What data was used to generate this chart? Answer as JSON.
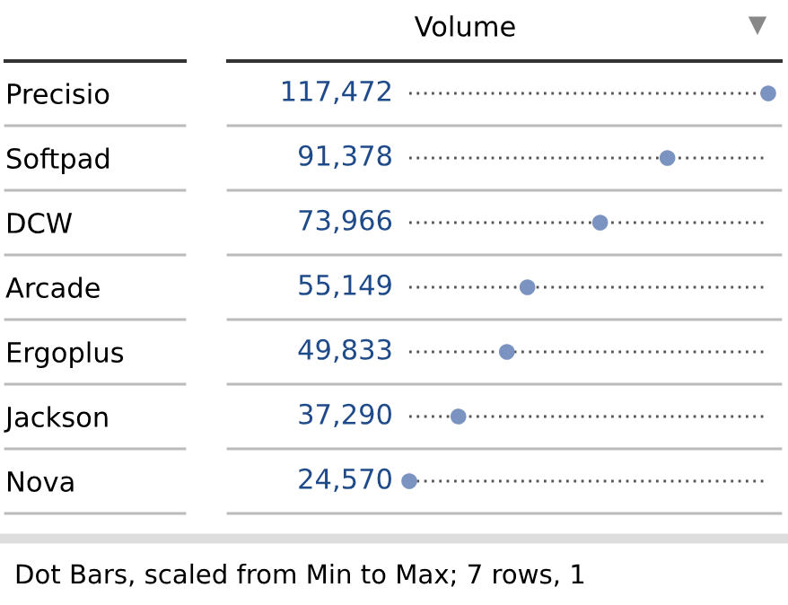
{
  "chart_data": {
    "type": "lollipop",
    "orientation": "horizontal",
    "title": "Volume",
    "categories": [
      "Precisio",
      "Softpad",
      "DCW",
      "Arcade",
      "Ergoplus",
      "Jackson",
      "Nova"
    ],
    "values": [
      117472,
      91378,
      73966,
      55149,
      49833,
      37290,
      24570
    ],
    "value_labels": [
      "117,472",
      "91,378",
      "73,966",
      "55,149",
      "49,833",
      "37,290",
      "24,570"
    ],
    "color": "#7b93c0",
    "marker": "circle",
    "line_style": "dotted",
    "tick_labels": "y",
    "grid": "y",
    "annotations": [
      "Dot Bars, scaled from Min to Max; 7 rows, 1"
    ]
  }
}
